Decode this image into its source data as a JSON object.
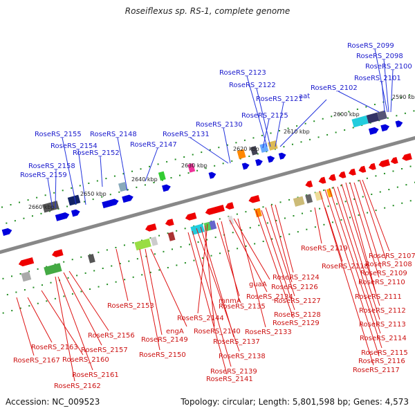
{
  "title": "Roseiflexus sp. RS-1, complete genome",
  "footer": {
    "accession": "Accession: NC_009523",
    "topology": "Topology: circular; Length: 5,801,598 bp; Genes: 4,573"
  },
  "colors": {
    "forward_gene": "#0000dd",
    "reverse_gene": "#ee0000",
    "backbone": "#888888",
    "tick_dot": "#1f8c1f"
  },
  "ticks": [
    {
      "text": "2590 kbp"
    },
    {
      "text": "2600 kbp"
    },
    {
      "text": "2610 kbp"
    },
    {
      "text": "2620 kbp"
    },
    {
      "text": "2630 kbp"
    },
    {
      "text": "2640 kbp"
    },
    {
      "text": "2650 kbp"
    },
    {
      "text": "2660 kbp"
    }
  ],
  "labels_top": [
    {
      "text": "RoseRS_2099"
    },
    {
      "text": "RoseRS_2098"
    },
    {
      "text": "RoseRS_2100"
    },
    {
      "text": "RoseRS_2101"
    },
    {
      "text": "RoseRS_2102"
    },
    {
      "text": "RoseRS_2123"
    },
    {
      "text": "RoseRS_2122"
    },
    {
      "text": "RoseRS_2121"
    },
    {
      "text": "aat"
    },
    {
      "text": "RoseRS_2125"
    },
    {
      "text": "RoseRS_2130"
    },
    {
      "text": "RoseRS_2131"
    },
    {
      "text": "RoseRS_2148"
    },
    {
      "text": "RoseRS_2155"
    },
    {
      "text": "RoseRS_2154"
    },
    {
      "text": "RoseRS_2147"
    },
    {
      "text": "RoseRS_2152"
    },
    {
      "text": "RoseRS_2158"
    },
    {
      "text": "RoseRS_2159"
    }
  ],
  "labels_bottom": [
    {
      "text": "RoseRS_2119"
    },
    {
      "text": "RoseRS_2107"
    },
    {
      "text": "RoseRS_2118"
    },
    {
      "text": "RoseRS_2108"
    },
    {
      "text": "RoseRS_2109"
    },
    {
      "text": "RoseRS_2110"
    },
    {
      "text": "RoseRS_2111"
    },
    {
      "text": "RoseRS_2112"
    },
    {
      "text": "RoseRS_2113"
    },
    {
      "text": "RoseRS_2114"
    },
    {
      "text": "RoseRS_2115"
    },
    {
      "text": "RoseRS_2116"
    },
    {
      "text": "RoseRS_2117"
    },
    {
      "text": "RoseRS_2124"
    },
    {
      "text": "RoseRS_2126"
    },
    {
      "text": "RoseRS_2127"
    },
    {
      "text": "RoseRS_2128"
    },
    {
      "text": "RoseRS_2129"
    },
    {
      "text": "RoseRS_2133"
    },
    {
      "text": "guaA"
    },
    {
      "text": "RoseRS_2134"
    },
    {
      "text": "RoseRS_2135"
    },
    {
      "text": "mnmA"
    },
    {
      "text": "RoseRS_2144"
    },
    {
      "text": "RoseRS_2140"
    },
    {
      "text": "RoseRS_2137"
    },
    {
      "text": "RoseRS_2138"
    },
    {
      "text": "RoseRS_2139"
    },
    {
      "text": "RoseRS_2141"
    },
    {
      "text": "RoseRS_2153"
    },
    {
      "text": "engA"
    },
    {
      "text": "RoseRS_2149"
    },
    {
      "text": "RoseRS_2150"
    },
    {
      "text": "RoseRS_2156"
    },
    {
      "text": "RoseRS_2157"
    },
    {
      "text": "RoseRS_2163"
    },
    {
      "text": "RoseRS_2160"
    },
    {
      "text": "RoseRS_2167"
    },
    {
      "text": "RoseRS_2161"
    },
    {
      "text": "RoseRS_2162"
    }
  ]
}
